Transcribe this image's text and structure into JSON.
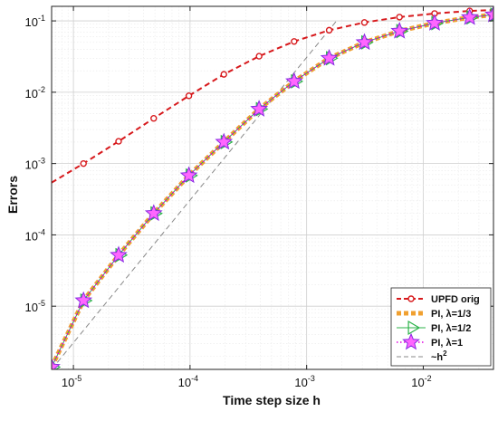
{
  "chart_data": {
    "type": "line",
    "xlabel": "Time step size h",
    "ylabel": "Errors",
    "xscale": "log",
    "yscale": "log",
    "xlim": [
      6.5e-06,
      0.04
    ],
    "ylim": [
      1.3e-06,
      0.16
    ],
    "grid": true,
    "legend_position": "bottom-right",
    "x_ticks": [
      {
        "value": 1e-05,
        "base": "10",
        "exp": "-5"
      },
      {
        "value": 0.0001,
        "base": "10",
        "exp": "-4"
      },
      {
        "value": 0.001,
        "base": "10",
        "exp": "-3"
      },
      {
        "value": 0.01,
        "base": "10",
        "exp": "-2"
      }
    ],
    "y_ticks": [
      {
        "value": 1e-05,
        "base": "10",
        "exp": "-5"
      },
      {
        "value": 0.0001,
        "base": "10",
        "exp": "-4"
      },
      {
        "value": 0.001,
        "base": "10",
        "exp": "-3"
      },
      {
        "value": 0.01,
        "base": "10",
        "exp": "-2"
      },
      {
        "value": 0.1,
        "base": "10",
        "exp": "-1"
      }
    ],
    "series": [
      {
        "name": "UPFD orig",
        "color": "#d7191c",
        "style": "dashed-circle",
        "x": [
          1.22e-05,
          2.44e-05,
          4.88e-05,
          9.77e-05,
          0.000195,
          0.000391,
          0.000781,
          0.00156,
          0.00313,
          0.00625,
          0.0125,
          0.025
        ],
        "y": [
          0.001,
          0.00205,
          0.0043,
          0.0089,
          0.0178,
          0.032,
          0.0515,
          0.074,
          0.095,
          0.113,
          0.127,
          0.138
        ],
        "curve": {
          "x": [
            6.5e-06,
            1.22e-05,
            2.44e-05,
            4.88e-05,
            9.77e-05,
            0.000195,
            0.000391,
            0.000781,
            0.00156,
            0.00313,
            0.00625,
            0.0125,
            0.025,
            0.04
          ],
          "y": [
            0.00054,
            0.001,
            0.00205,
            0.0043,
            0.0089,
            0.0178,
            0.032,
            0.0515,
            0.074,
            0.095,
            0.113,
            0.127,
            0.138,
            0.142
          ]
        }
      },
      {
        "name": "PI, ",
        "lambda": "λ=1/3",
        "color": "#f0a030",
        "style": "thick-dotted-square",
        "x": [
          6.5e-06,
          1.22e-05,
          2.44e-05,
          4.88e-05,
          9.77e-05,
          0.000195,
          0.000391,
          0.000781,
          0.00156,
          0.00313,
          0.00625,
          0.0125,
          0.025,
          0.04
        ],
        "y": [
          1.4e-06,
          1.2e-05,
          5.2e-05,
          0.0002,
          0.00068,
          0.002,
          0.0058,
          0.0142,
          0.03,
          0.05,
          0.072,
          0.093,
          0.112,
          0.122
        ]
      },
      {
        "name": "PI, ",
        "lambda": "λ=1/2",
        "color": "#2cb34a",
        "style": "triangle",
        "x": [
          6.5e-06,
          1.22e-05,
          2.44e-05,
          4.88e-05,
          9.77e-05,
          0.000195,
          0.000391,
          0.000781,
          0.00156,
          0.00313,
          0.00625,
          0.0125,
          0.025,
          0.04
        ],
        "y": [
          1.4e-06,
          1.2e-05,
          5.2e-05,
          0.0002,
          0.00068,
          0.002,
          0.0058,
          0.0142,
          0.03,
          0.05,
          0.072,
          0.093,
          0.112,
          0.122
        ]
      },
      {
        "name": "PI, ",
        "lambda": "λ=1",
        "color": "#e000e0",
        "style": "dotted-star",
        "x": [
          6.5e-06,
          1.22e-05,
          2.44e-05,
          4.88e-05,
          9.77e-05,
          0.000195,
          0.000391,
          0.000781,
          0.00156,
          0.00313,
          0.00625,
          0.0125,
          0.025,
          0.04
        ],
        "y": [
          1.4e-06,
          1.2e-05,
          5.2e-05,
          0.0002,
          0.00068,
          0.002,
          0.0058,
          0.0142,
          0.03,
          0.05,
          0.072,
          0.093,
          0.112,
          0.122
        ]
      },
      {
        "name": "~h",
        "sup": "2",
        "color": "#888888",
        "style": "thin-dashed",
        "x": [
          6.5e-06,
          0.00184
        ],
        "y": [
          1.3e-06,
          0.104
        ]
      }
    ],
    "colors": {
      "background": "#ffffff",
      "axis": "#222222",
      "grid_major": "#cfcfcf",
      "grid_minor": "#e9e9e9",
      "star_fill": "#ff66ff",
      "star_stroke": "#8a2be2"
    }
  }
}
